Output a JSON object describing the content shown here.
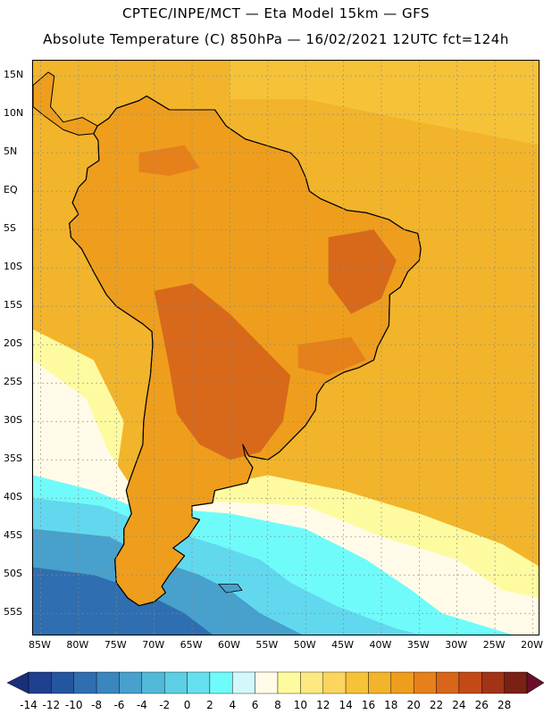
{
  "header": {
    "line1": "CPTEC/INPE/MCT —  Eta Model 15km — GFS",
    "line2": "Absolute Temperature (C) 850hPa — 16/02/2021 12UTC fct=124h"
  },
  "map": {
    "lon_range": [
      -86,
      -19
    ],
    "lat_range": [
      -58,
      17
    ],
    "lat_labels": [
      "15N",
      "10N",
      "5N",
      "EQ",
      "5S",
      "10S",
      "15S",
      "20S",
      "25S",
      "30S",
      "35S",
      "40S",
      "45S",
      "50S",
      "55S"
    ],
    "lon_labels": [
      "85W",
      "80W",
      "75W",
      "70W",
      "65W",
      "60W",
      "55W",
      "50W",
      "45W",
      "40W",
      "35W",
      "30W",
      "25W",
      "20W"
    ],
    "ocean_color": "#f2b42b",
    "land_color": "#ee9e1c",
    "hot_color": "#d8691a",
    "cold_color": "#62d8ee"
  },
  "colorbar": {
    "labels": [
      "-14",
      "-12",
      "-10",
      "-8",
      "-6",
      "-4",
      "-2",
      "0",
      "2",
      "4",
      "6",
      "8",
      "10",
      "12",
      "14",
      "16",
      "18",
      "20",
      "22",
      "24",
      "26",
      "28"
    ],
    "colors": [
      "#1f3f8f",
      "#2456a0",
      "#2f6eb0",
      "#3a86bf",
      "#47a1cc",
      "#53b9d8",
      "#5ccfe3",
      "#66e0ee",
      "#70fbfb",
      "#d2f8fb",
      "#fffbe8",
      "#fefaa0",
      "#fde882",
      "#fbd560",
      "#f6c238",
      "#f2b42b",
      "#ee9e1c",
      "#e6801a",
      "#d8651a",
      "#c34a17",
      "#a23316",
      "#7a2014"
    ],
    "left_color": "#1a2f7a",
    "right_color": "#6a0f2a"
  }
}
